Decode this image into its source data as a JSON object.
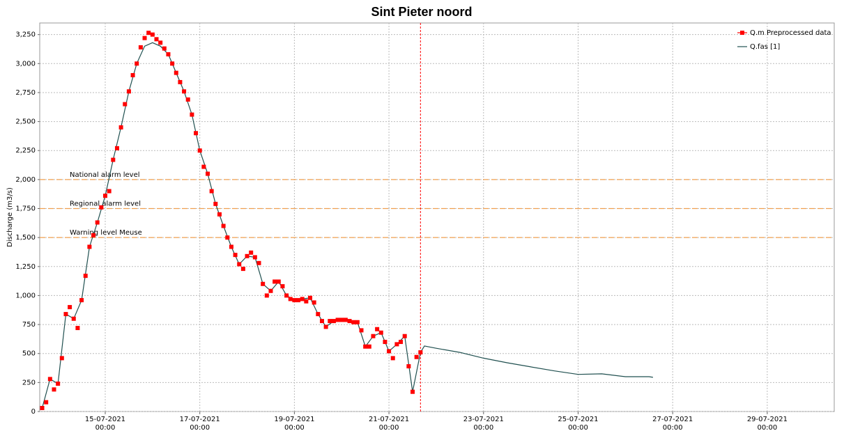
{
  "chart_data": {
    "type": "line",
    "title": "Sint Pieter noord",
    "y_label": "Discharge (m3/s)",
    "xlim": [
      "13-07-2021 14:45",
      "30-07-2021 10:00"
    ],
    "xticks": [
      "15-07-2021 00:00",
      "17-07-2021 00:00",
      "19-07-2021 00:00",
      "21-07-2021 00:00",
      "23-07-2021 00:00",
      "25-07-2021 00:00",
      "27-07-2021 00:00",
      "29-07-2021 00:00"
    ],
    "ylim": [
      0,
      3350
    ],
    "yticks": [
      0,
      250,
      500,
      750,
      {
        "value": 1000,
        "label": "1,000"
      },
      {
        "value": 1250,
        "label": "1,250"
      },
      {
        "value": 1500,
        "label": "1,500"
      },
      {
        "value": 1750,
        "label": "1,750"
      },
      {
        "value": 2000,
        "label": "2,000"
      },
      {
        "value": 2250,
        "label": "2,250"
      },
      {
        "value": 2500,
        "label": "2,500"
      },
      {
        "value": 2750,
        "label": "2,750"
      },
      {
        "value": 3000,
        "label": "3,000"
      },
      {
        "value": 3250,
        "label": "3,250"
      }
    ],
    "grid": true,
    "legend": "top-right",
    "reference_lines": [
      {
        "label": "National alarm level",
        "value": 2000,
        "color": "#f0a050"
      },
      {
        "label": "Regional alarm level",
        "value": 1750,
        "color": "#f0a050"
      },
      {
        "label": "Warning level Meuse",
        "value": 1500,
        "color": "#f0a050"
      }
    ],
    "vline": {
      "x": "21-07-2021 16:00",
      "color": "#ff0000"
    },
    "series": [
      {
        "name": "Q.m Preprocessed data",
        "color": "#ff0000",
        "marker": "square",
        "x": [
          "13-07-2021 16:00",
          "13-07-2021 18:00",
          "13-07-2021 20:00",
          "13-07-2021 22:00",
          "14-07-2021 00:00",
          "14-07-2021 02:00",
          "14-07-2021 04:00",
          "14-07-2021 06:00",
          "14-07-2021 08:00",
          "14-07-2021 10:00",
          "14-07-2021 12:00",
          "14-07-2021 14:00",
          "14-07-2021 16:00",
          "14-07-2021 18:00",
          "14-07-2021 20:00",
          "14-07-2021 22:00",
          "15-07-2021 00:00",
          "15-07-2021 02:00",
          "15-07-2021 04:00",
          "15-07-2021 06:00",
          "15-07-2021 08:00",
          "15-07-2021 10:00",
          "15-07-2021 12:00",
          "15-07-2021 14:00",
          "15-07-2021 16:00",
          "15-07-2021 18:00",
          "15-07-2021 20:00",
          "15-07-2021 22:00",
          "16-07-2021 00:00",
          "16-07-2021 02:00",
          "16-07-2021 04:00",
          "16-07-2021 06:00",
          "16-07-2021 08:00",
          "16-07-2021 10:00",
          "16-07-2021 12:00",
          "16-07-2021 14:00",
          "16-07-2021 16:00",
          "16-07-2021 18:00",
          "16-07-2021 20:00",
          "16-07-2021 22:00",
          "17-07-2021 00:00",
          "17-07-2021 02:00",
          "17-07-2021 04:00",
          "17-07-2021 06:00",
          "17-07-2021 08:00",
          "17-07-2021 10:00",
          "17-07-2021 12:00",
          "17-07-2021 14:00",
          "17-07-2021 16:00",
          "17-07-2021 18:00",
          "17-07-2021 20:00",
          "17-07-2021 22:00",
          "18-07-2021 00:00",
          "18-07-2021 02:00",
          "18-07-2021 04:00",
          "18-07-2021 06:00",
          "18-07-2021 08:00",
          "18-07-2021 10:00",
          "18-07-2021 12:00",
          "18-07-2021 14:00",
          "18-07-2021 16:00",
          "18-07-2021 18:00",
          "18-07-2021 20:00",
          "18-07-2021 22:00",
          "19-07-2021 00:00",
          "19-07-2021 02:00",
          "19-07-2021 04:00",
          "19-07-2021 06:00",
          "19-07-2021 08:00",
          "19-07-2021 10:00",
          "19-07-2021 12:00",
          "19-07-2021 14:00",
          "19-07-2021 16:00",
          "19-07-2021 18:00",
          "19-07-2021 20:00",
          "19-07-2021 22:00",
          "20-07-2021 00:00",
          "20-07-2021 02:00",
          "20-07-2021 04:00",
          "20-07-2021 06:00",
          "20-07-2021 08:00",
          "20-07-2021 10:00",
          "20-07-2021 12:00",
          "20-07-2021 14:00",
          "20-07-2021 16:00",
          "20-07-2021 18:00",
          "20-07-2021 20:00",
          "20-07-2021 22:00",
          "21-07-2021 00:00",
          "21-07-2021 02:00",
          "21-07-2021 04:00",
          "21-07-2021 06:00",
          "21-07-2021 08:00",
          "21-07-2021 10:00",
          "21-07-2021 12:00",
          "21-07-2021 14:00",
          "21-07-2021 16:00"
        ],
        "values": [
          30,
          80,
          280,
          190,
          240,
          460,
          840,
          900,
          800,
          720,
          960,
          1170,
          1420,
          1520,
          1630,
          1760,
          1860,
          1900,
          2170,
          2270,
          2450,
          2650,
          2760,
          2900,
          3000,
          3140,
          3220,
          3265,
          3250,
          3210,
          3180,
          3130,
          3080,
          3000,
          2920,
          2840,
          2760,
          2690,
          2560,
          2400,
          2250,
          2110,
          2050,
          1900,
          1790,
          1700,
          1600,
          1500,
          1420,
          1350,
          1270,
          1230,
          1340,
          1370,
          1330,
          1280,
          1100,
          1000,
          1040,
          1120,
          1120,
          1080,
          1000,
          970,
          960,
          960,
          970,
          950,
          980,
          940,
          840,
          780,
          730,
          780,
          780,
          790,
          790,
          790,
          780,
          770,
          770,
          700,
          560,
          560,
          650,
          710,
          680,
          600,
          520,
          460,
          580,
          600,
          650,
          390,
          170,
          470,
          510
        ]
      },
      {
        "name": "Q.fas [1]",
        "color": "#1f4f4f",
        "marker": "none",
        "x": [
          "13-07-2021 16:00",
          "13-07-2021 20:00",
          "14-07-2021 00:00",
          "14-07-2021 04:00",
          "14-07-2021 08:00",
          "14-07-2021 12:00",
          "14-07-2021 16:00",
          "14-07-2021 20:00",
          "15-07-2021 00:00",
          "15-07-2021 04:00",
          "15-07-2021 08:00",
          "15-07-2021 12:00",
          "15-07-2021 16:00",
          "15-07-2021 20:00",
          "16-07-2021 00:00",
          "16-07-2021 04:00",
          "16-07-2021 08:00",
          "16-07-2021 12:00",
          "16-07-2021 16:00",
          "16-07-2021 20:00",
          "17-07-2021 00:00",
          "17-07-2021 04:00",
          "17-07-2021 08:00",
          "17-07-2021 12:00",
          "17-07-2021 16:00",
          "17-07-2021 20:00",
          "18-07-2021 00:00",
          "18-07-2021 04:00",
          "18-07-2021 08:00",
          "18-07-2021 12:00",
          "18-07-2021 16:00",
          "18-07-2021 20:00",
          "19-07-2021 00:00",
          "19-07-2021 04:00",
          "19-07-2021 08:00",
          "19-07-2021 12:00",
          "19-07-2021 16:00",
          "19-07-2021 20:00",
          "20-07-2021 00:00",
          "20-07-2021 04:00",
          "20-07-2021 08:00",
          "20-07-2021 12:00",
          "20-07-2021 16:00",
          "20-07-2021 20:00",
          "21-07-2021 00:00",
          "21-07-2021 04:00",
          "21-07-2021 08:00",
          "21-07-2021 12:00",
          "21-07-2021 16:00",
          "21-07-2021 18:00",
          "22-07-2021 00:00",
          "22-07-2021 12:00",
          "23-07-2021 00:00",
          "23-07-2021 12:00",
          "24-07-2021 00:00",
          "24-07-2021 12:00",
          "25-07-2021 00:00",
          "25-07-2021 12:00",
          "26-07-2021 00:00",
          "26-07-2021 12:00",
          "26-07-2021 14:00"
        ],
        "values": [
          30,
          280,
          240,
          840,
          800,
          960,
          1420,
          1630,
          1860,
          2170,
          2450,
          2760,
          3000,
          3150,
          3180,
          3150,
          3080,
          2920,
          2760,
          2560,
          2250,
          2050,
          1790,
          1600,
          1420,
          1270,
          1340,
          1330,
          1100,
          1040,
          1120,
          1000,
          960,
          970,
          980,
          840,
          730,
          780,
          790,
          780,
          770,
          560,
          650,
          680,
          520,
          580,
          650,
          170,
          510,
          565,
          545,
          510,
          460,
          420,
          385,
          350,
          320,
          325,
          300,
          300,
          295
        ]
      }
    ]
  }
}
